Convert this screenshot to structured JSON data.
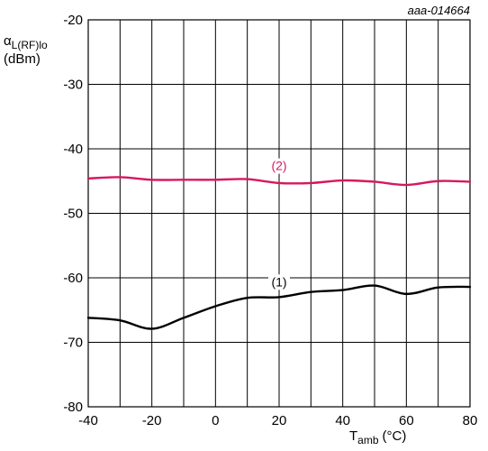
{
  "chart_data": {
    "type": "line",
    "figure_id": "aaa-014664",
    "ylabel_symbol": "α",
    "ylabel_sub": "L(RF)lo",
    "ylabel_unit": "(dBm)",
    "xlabel_main": "T",
    "xlabel_sub": "amb",
    "xlabel_unit": "(°C)",
    "xlim": [
      -40,
      80
    ],
    "ylim": [
      -80,
      -20
    ],
    "xticks": [
      -40,
      -20,
      0,
      20,
      40,
      60,
      80
    ],
    "yticks": [
      -20,
      -30,
      -40,
      -50,
      -60,
      -70,
      -80
    ],
    "grid": true,
    "series": [
      {
        "name": "(1)",
        "color": "#000000",
        "label_at": [
          20,
          -61.3
        ],
        "x": [
          -40,
          -30,
          -20,
          -10,
          0,
          10,
          20,
          30,
          40,
          50,
          60,
          70,
          80
        ],
        "y": [
          -66.2,
          -66.6,
          -67.9,
          -66.2,
          -64.4,
          -63.1,
          -63.0,
          -62.2,
          -61.9,
          -61.2,
          -62.5,
          -61.5,
          -61.4
        ]
      },
      {
        "name": "(2)",
        "color": "#d6195f",
        "label_at": [
          20,
          -43.3
        ],
        "x": [
          -40,
          -30,
          -20,
          -10,
          0,
          10,
          20,
          30,
          40,
          50,
          60,
          70,
          80
        ],
        "y": [
          -44.6,
          -44.4,
          -44.8,
          -44.8,
          -44.8,
          -44.7,
          -45.3,
          -45.3,
          -44.9,
          -45.1,
          -45.6,
          -45.0,
          -45.1
        ]
      }
    ]
  }
}
